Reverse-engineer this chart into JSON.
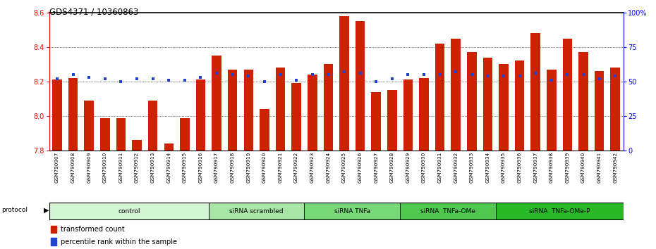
{
  "title": "GDS4371 / 10360863",
  "samples": [
    "GSM790907",
    "GSM790908",
    "GSM790909",
    "GSM790910",
    "GSM790911",
    "GSM790912",
    "GSM790913",
    "GSM790914",
    "GSM790915",
    "GSM790916",
    "GSM790917",
    "GSM790918",
    "GSM790919",
    "GSM790920",
    "GSM790921",
    "GSM790922",
    "GSM790923",
    "GSM790924",
    "GSM790925",
    "GSM790926",
    "GSM790927",
    "GSM790928",
    "GSM790929",
    "GSM790930",
    "GSM790931",
    "GSM790932",
    "GSM790933",
    "GSM790934",
    "GSM790935",
    "GSM790936",
    "GSM790937",
    "GSM790938",
    "GSM790939",
    "GSM790940",
    "GSM790941",
    "GSM790942"
  ],
  "red_values": [
    8.21,
    8.22,
    8.09,
    7.99,
    7.99,
    7.86,
    8.09,
    7.84,
    7.99,
    8.21,
    8.35,
    8.27,
    8.27,
    8.04,
    8.28,
    8.19,
    8.24,
    8.3,
    8.58,
    8.55,
    8.14,
    8.15,
    8.21,
    8.22,
    8.42,
    8.45,
    8.37,
    8.34,
    8.3,
    8.32,
    8.48,
    8.27,
    8.45,
    8.37,
    8.26,
    8.28
  ],
  "blue_values": [
    52,
    55,
    53,
    52,
    50,
    52,
    52,
    51,
    51,
    53,
    56,
    55,
    54,
    50,
    55,
    51,
    55,
    55,
    57,
    56,
    50,
    52,
    55,
    55,
    55,
    57,
    55,
    54,
    54,
    54,
    56,
    51,
    55,
    55,
    52,
    54
  ],
  "groups": [
    {
      "label": "control",
      "start": 0,
      "end": 10,
      "color": "#d4f5d4"
    },
    {
      "label": "siRNA scrambled",
      "start": 10,
      "end": 16,
      "color": "#a8e6a8"
    },
    {
      "label": "siRNA TNFa",
      "start": 16,
      "end": 22,
      "color": "#78d878"
    },
    {
      "label": "siRNA  TNFa-OMe",
      "start": 22,
      "end": 28,
      "color": "#50c850"
    },
    {
      "label": "siRNA  TNFa-OMe-P",
      "start": 28,
      "end": 36,
      "color": "#28b828"
    }
  ],
  "ylim_left": [
    7.8,
    8.6
  ],
  "ylim_right": [
    0,
    100
  ],
  "yticks_left": [
    7.8,
    8.0,
    8.2,
    8.4,
    8.6
  ],
  "yticks_right": [
    0,
    25,
    50,
    75,
    100
  ],
  "ytick_labels_right": [
    "0",
    "25",
    "50",
    "75",
    "100%"
  ],
  "bar_color": "#cc2200",
  "dot_color": "#2244cc",
  "bar_width": 0.6,
  "grid_dotted_at": [
    8.0,
    8.2,
    8.4
  ]
}
